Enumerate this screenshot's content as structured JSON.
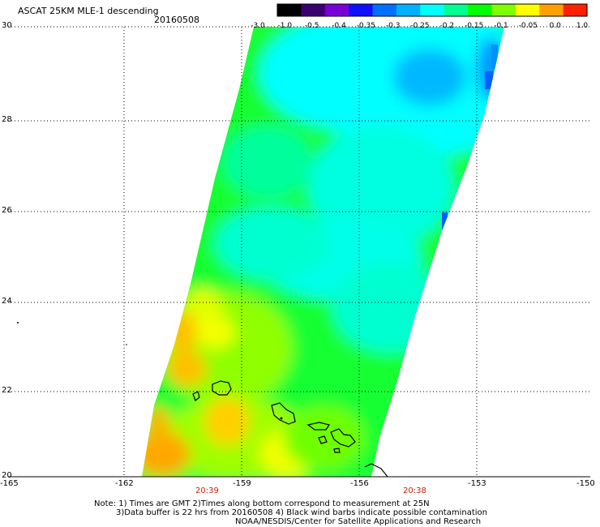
{
  "header": {
    "title": "ASCAT 25KM MLE-1 descending",
    "date": "20160508"
  },
  "colorbar": {
    "labels": [
      "-3.0",
      "-1.0",
      "-0.5",
      "-0.4",
      "-0.35",
      "-0.3",
      "-0.25",
      "-0.2",
      "-0.15",
      "-0.1",
      "-0.05",
      "0.0",
      "1.0"
    ],
    "colors": [
      "#000000",
      "#3a0070",
      "#7a00d8",
      "#1010ff",
      "#0070ff",
      "#00b0ff",
      "#00ffff",
      "#00ff90",
      "#00ff00",
      "#80ff00",
      "#ffff00",
      "#ffa000",
      "#ff2000"
    ]
  },
  "map": {
    "lat_labels": [
      "30",
      "28",
      "26",
      "24",
      "22",
      "20"
    ],
    "lon_labels": [
      "-165",
      "-162",
      "-159",
      "-156",
      "-153",
      "-150"
    ],
    "times": [
      "20:39",
      "20:38"
    ],
    "time_color": "#cc2200",
    "coastline_color": "#000000"
  },
  "notes": {
    "line1": "Note: 1) Times are GMT 2)Times along bottom correspond to measurement at 25N",
    "line2": "3)Data buffer is 22 hrs from 20160508 4) Black wind barbs indicate possible contamination",
    "line3": "NOAA/NESDIS/Center for Satellite Applications and Research"
  }
}
